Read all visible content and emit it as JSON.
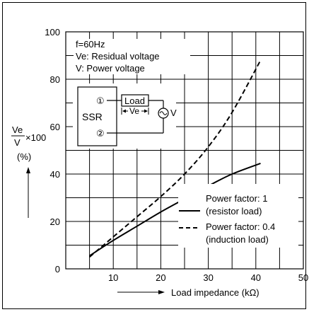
{
  "chart_data": {
    "type": "line",
    "title": "",
    "xlabel": "Load impedance (kΩ)",
    "ylabel_fraction_top": "Ve",
    "ylabel_fraction_bottom": "V",
    "ylabel_multiplier": "×100",
    "ylabel_unit": "(%)",
    "xlim": [
      0,
      50
    ],
    "ylim": [
      0,
      100
    ],
    "x_ticks": [
      "10",
      "20",
      "30",
      "40",
      "50"
    ],
    "y_ticks": [
      "0",
      "20",
      "40",
      "60",
      "80",
      "100"
    ],
    "grid": true,
    "series": [
      {
        "name": "Power factor: 1 (resistor load)",
        "legend_line1": "Power factor: 1",
        "legend_line2": "(resistor load)",
        "style": "solid",
        "x": [
          5,
          10,
          15,
          20,
          25,
          30,
          35,
          41
        ],
        "y": [
          5.5,
          12,
          18,
          24,
          29.5,
          35,
          40,
          44.5
        ]
      },
      {
        "name": "Power factor: 0.4 (induction load)",
        "legend_line1": "Power factor: 0.4",
        "legend_line2": "(induction load)",
        "style": "dashed",
        "x": [
          5,
          10,
          15,
          20,
          25,
          30,
          35,
          41
        ],
        "y": [
          5,
          13.5,
          22,
          30.5,
          40,
          51.5,
          66,
          88
        ]
      }
    ],
    "annotations": {
      "frequency": "f=60Hz",
      "ve_def": "Ve: Residual voltage",
      "v_def": "V: Power voltage"
    },
    "inset_diagram": {
      "device_label": "SSR",
      "terminal_1": "①",
      "terminal_2": "②",
      "load_label": "Load",
      "ve_label": "Ve",
      "source_label": "V",
      "source_symbol": "~"
    }
  }
}
